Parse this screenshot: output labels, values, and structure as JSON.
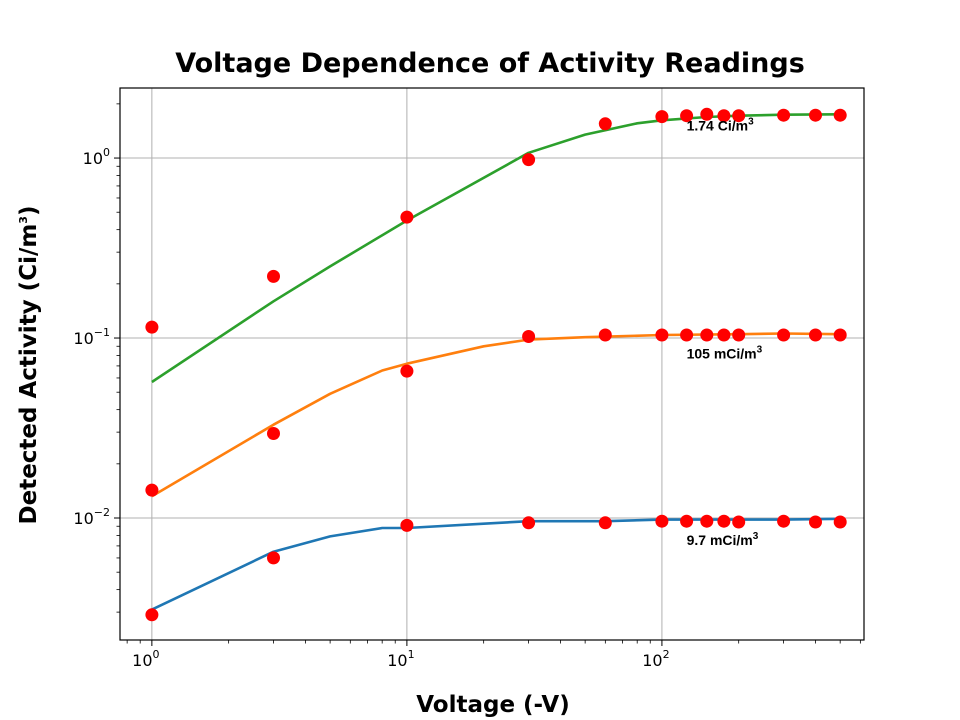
{
  "chart_data": {
    "type": "scatter",
    "title": "Voltage Dependence of Activity Readings",
    "xlabel": "Voltage (-V)",
    "ylabel": "Detected Activity (Ci/m",
    "ylabel_sup": "3",
    "ylabel_close": ")",
    "xscale": "log",
    "yscale": "log",
    "xlim": [
      0.75,
      620
    ],
    "ylim": [
      0.0021,
      2.45
    ],
    "grid": true,
    "xticks": [
      {
        "value": 1,
        "base": "10",
        "exp": "0"
      },
      {
        "value": 10,
        "base": "10",
        "exp": "1"
      },
      {
        "value": 100,
        "base": "10",
        "exp": "2"
      }
    ],
    "yticks": [
      {
        "value": 0.01,
        "base": "10",
        "exp": "−2"
      },
      {
        "value": 0.1,
        "base": "10",
        "exp": "−1"
      },
      {
        "value": 1,
        "base": "10",
        "exp": "0"
      }
    ],
    "colors": {
      "points": "#ff0000",
      "grid": "#b0b0b0"
    },
    "series": [
      {
        "name": "1.74 Ci/m3",
        "label_text": "1.74 Ci/m",
        "label_sup": "3",
        "label_at": [
          125,
          1.42
        ],
        "color": "#2ca02c",
        "x": [
          1,
          3,
          10,
          30,
          60,
          100,
          125,
          150,
          175,
          200,
          300,
          400,
          500
        ],
        "y": [
          0.115,
          0.22,
          0.47,
          0.98,
          1.55,
          1.7,
          1.72,
          1.75,
          1.72,
          1.72,
          1.73,
          1.73,
          1.73
        ],
        "fit_x": [
          1,
          3,
          5,
          10,
          30,
          50,
          80,
          100,
          150,
          200,
          300,
          500
        ],
        "fit_y": [
          0.057,
          0.16,
          0.25,
          0.45,
          1.07,
          1.35,
          1.56,
          1.62,
          1.69,
          1.72,
          1.74,
          1.75
        ]
      },
      {
        "name": "105 mCi/m3",
        "label_text": "105 mCi/m",
        "label_sup": "3",
        "label_at": [
          125,
          0.077
        ],
        "color": "#ff7f0e",
        "x": [
          1,
          3,
          10,
          30,
          60,
          100,
          125,
          150,
          175,
          200,
          300,
          400,
          500
        ],
        "y": [
          0.0143,
          0.0295,
          0.0655,
          0.102,
          0.104,
          0.104,
          0.104,
          0.104,
          0.104,
          0.104,
          0.104,
          0.104,
          0.104
        ],
        "fit_x": [
          1,
          3,
          5,
          8,
          10,
          20,
          30,
          50,
          100,
          200,
          300,
          500
        ],
        "fit_y": [
          0.0132,
          0.033,
          0.049,
          0.066,
          0.072,
          0.09,
          0.098,
          0.101,
          0.104,
          0.105,
          0.106,
          0.105
        ]
      },
      {
        "name": "9.7 mCi/m3",
        "label_text": "9.7 mCi/m",
        "label_sup": "3",
        "label_at": [
          125,
          0.0071
        ],
        "color": "#1f77b4",
        "x": [
          1,
          3,
          10,
          30,
          60,
          100,
          125,
          150,
          175,
          200,
          300,
          400,
          500
        ],
        "y": [
          0.0029,
          0.006,
          0.0091,
          0.0094,
          0.0094,
          0.0096,
          0.0096,
          0.0096,
          0.0096,
          0.0095,
          0.0096,
          0.0095,
          0.0095
        ],
        "fit_x": [
          1,
          3,
          5,
          8,
          10,
          20,
          30,
          60,
          100,
          200,
          300,
          500
        ],
        "fit_y": [
          0.0031,
          0.0065,
          0.0079,
          0.0088,
          0.0088,
          0.0093,
          0.0096,
          0.0096,
          0.0098,
          0.0098,
          0.0098,
          0.0099
        ]
      }
    ]
  }
}
